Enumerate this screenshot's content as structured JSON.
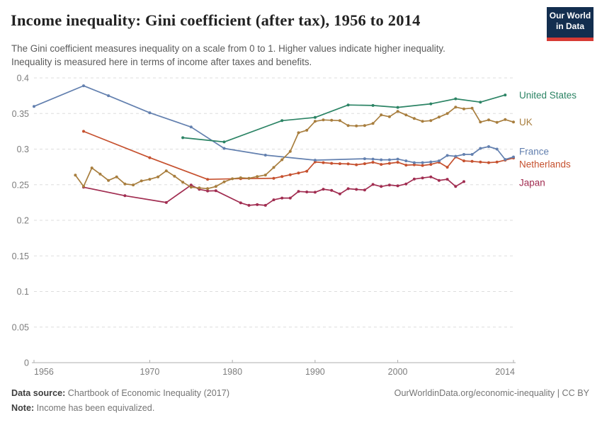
{
  "header": {
    "title": "Income inequality: Gini coefficient (after tax), 1956 to 2014",
    "subtitle_line1": "The Gini coefficient measures inequality on a scale from 0 to 1. Higher values indicate higher inequality.",
    "subtitle_line2": "Inequality is measured here in terms of income after taxes and benefits.",
    "logo_line1": "Our World",
    "logo_line2": "in Data",
    "logo_bg": "#132e4f",
    "logo_accent": "#d73a34"
  },
  "footer": {
    "datasource_label": "Data source:",
    "datasource_value": " Chartbook of Economic Inequality (2017)",
    "note_label": "Note:",
    "note_value": " Income has been equivalized.",
    "link": "OurWorldinData.org/economic-inequality | CC BY"
  },
  "chart_data": {
    "type": "line",
    "title": "Income inequality: Gini coefficient (after tax), 1956 to 2014",
    "xlabel": "",
    "ylabel": "",
    "xlim": [
      1956,
      2014
    ],
    "ylim": [
      0,
      0.4
    ],
    "grid": "horizontal-dashed",
    "legend_position": "end-of-line-labels",
    "axis_color": "#adadad",
    "grid_color": "#dddddd",
    "tick_text_color": "#7d7d7d",
    "x_ticks": [
      {
        "v": 1956,
        "label": "1956",
        "anchor": "start"
      },
      {
        "v": 1970,
        "label": "1970",
        "anchor": "middle"
      },
      {
        "v": 1980,
        "label": "1980",
        "anchor": "middle"
      },
      {
        "v": 1990,
        "label": "1990",
        "anchor": "middle"
      },
      {
        "v": 2000,
        "label": "2000",
        "anchor": "middle"
      },
      {
        "v": 2014,
        "label": "2014",
        "anchor": "end"
      }
    ],
    "y_ticks": [
      {
        "v": 0,
        "label": "0"
      },
      {
        "v": 0.05,
        "label": "0.05"
      },
      {
        "v": 0.1,
        "label": "0.1"
      },
      {
        "v": 0.15,
        "label": "0.15"
      },
      {
        "v": 0.2,
        "label": "0.2"
      },
      {
        "v": 0.25,
        "label": "0.25"
      },
      {
        "v": 0.3,
        "label": "0.3"
      },
      {
        "v": 0.35,
        "label": "0.35"
      },
      {
        "v": 0.4,
        "label": "0.4"
      }
    ],
    "series": [
      {
        "name": "United States",
        "color": "#2c8465",
        "label_value": 0.3755,
        "points": [
          [
            1974,
            0.316
          ],
          [
            1979,
            0.31
          ],
          [
            1986,
            0.34
          ],
          [
            1990,
            0.3445
          ],
          [
            1994,
            0.362
          ],
          [
            1997,
            0.3613
          ],
          [
            2000,
            0.3586
          ],
          [
            2004,
            0.3636
          ],
          [
            2007,
            0.3706
          ],
          [
            2010,
            0.366
          ],
          [
            2013,
            0.376
          ]
        ]
      },
      {
        "name": "UK",
        "color": "#a87e3e",
        "label_value": 0.338,
        "points": [
          [
            1961,
            0.2635
          ],
          [
            1962,
            0.2477
          ],
          [
            1963,
            0.2735
          ],
          [
            1964,
            0.265
          ],
          [
            1965,
            0.256
          ],
          [
            1966,
            0.261
          ],
          [
            1967,
            0.251
          ],
          [
            1968,
            0.2497
          ],
          [
            1969,
            0.2553
          ],
          [
            1970,
            0.2576
          ],
          [
            1971,
            0.261
          ],
          [
            1972,
            0.2695
          ],
          [
            1973,
            0.262
          ],
          [
            1974,
            0.2535
          ],
          [
            1975,
            0.2465
          ],
          [
            1976,
            0.2455
          ],
          [
            1977,
            0.2445
          ],
          [
            1978,
            0.2475
          ],
          [
            1979,
            0.254
          ],
          [
            1980,
            0.2583
          ],
          [
            1981,
            0.2597
          ],
          [
            1982,
            0.259
          ],
          [
            1983,
            0.2615
          ],
          [
            1984,
            0.2636
          ],
          [
            1985,
            0.2742
          ],
          [
            1986,
            0.2851
          ],
          [
            1987,
            0.2967
          ],
          [
            1988,
            0.323
          ],
          [
            1989,
            0.3265
          ],
          [
            1990,
            0.339
          ],
          [
            1991,
            0.341
          ],
          [
            1992,
            0.3405
          ],
          [
            1993,
            0.34
          ],
          [
            1994,
            0.333
          ],
          [
            1995,
            0.3325
          ],
          [
            1996,
            0.333
          ],
          [
            1997,
            0.336
          ],
          [
            1998,
            0.348
          ],
          [
            1999,
            0.3455
          ],
          [
            2000,
            0.353
          ],
          [
            2001,
            0.348
          ],
          [
            2002,
            0.343
          ],
          [
            2003,
            0.339
          ],
          [
            2004,
            0.34
          ],
          [
            2005,
            0.345
          ],
          [
            2006,
            0.35
          ],
          [
            2007,
            0.359
          ],
          [
            2008,
            0.3565
          ],
          [
            2009,
            0.3575
          ],
          [
            2010,
            0.338
          ],
          [
            2011,
            0.341
          ],
          [
            2012,
            0.3375
          ],
          [
            2013,
            0.3415
          ],
          [
            2014,
            0.338
          ]
        ]
      },
      {
        "name": "France",
        "color": "#6380af",
        "label_value": 0.2965,
        "points": [
          [
            1956,
            0.36
          ],
          [
            1962,
            0.389
          ],
          [
            1965,
            0.375
          ],
          [
            1970,
            0.351
          ],
          [
            1975,
            0.331
          ],
          [
            1979,
            0.301
          ],
          [
            1984,
            0.2915
          ],
          [
            1990,
            0.2845
          ],
          [
            1996,
            0.2865
          ],
          [
            1997,
            0.286
          ],
          [
            1998,
            0.285
          ],
          [
            1999,
            0.285
          ],
          [
            2000,
            0.286
          ],
          [
            2001,
            0.2835
          ],
          [
            2002,
            0.281
          ],
          [
            2003,
            0.281
          ],
          [
            2004,
            0.282
          ],
          [
            2005,
            0.2835
          ],
          [
            2006,
            0.291
          ],
          [
            2007,
            0.29
          ],
          [
            2008,
            0.2925
          ],
          [
            2009,
            0.2925
          ],
          [
            2010,
            0.301
          ],
          [
            2011,
            0.3035
          ],
          [
            2012,
            0.3
          ],
          [
            2013,
            0.2855
          ],
          [
            2014,
            0.289
          ]
        ]
      },
      {
        "name": "Netherlands",
        "color": "#c6512f",
        "label_value": 0.2785,
        "points": [
          [
            1962,
            0.325
          ],
          [
            1970,
            0.288
          ],
          [
            1977,
            0.2575
          ],
          [
            1981,
            0.2585
          ],
          [
            1985,
            0.259
          ],
          [
            1986,
            0.2615
          ],
          [
            1987,
            0.264
          ],
          [
            1988,
            0.2665
          ],
          [
            1989,
            0.269
          ],
          [
            1990,
            0.282
          ],
          [
            1991,
            0.281
          ],
          [
            1992,
            0.28
          ],
          [
            1993,
            0.2795
          ],
          [
            1994,
            0.2792
          ],
          [
            1995,
            0.278
          ],
          [
            1996,
            0.2795
          ],
          [
            1997,
            0.2815
          ],
          [
            1998,
            0.2785
          ],
          [
            1999,
            0.28
          ],
          [
            2000,
            0.2815
          ],
          [
            2001,
            0.2775
          ],
          [
            2002,
            0.278
          ],
          [
            2003,
            0.277
          ],
          [
            2004,
            0.2785
          ],
          [
            2005,
            0.2815
          ],
          [
            2006,
            0.2745
          ],
          [
            2007,
            0.289
          ],
          [
            2008,
            0.2835
          ],
          [
            2009,
            0.2828
          ],
          [
            2010,
            0.2818
          ],
          [
            2011,
            0.281
          ],
          [
            2012,
            0.2818
          ],
          [
            2013,
            0.2845
          ],
          [
            2014,
            0.2875
          ]
        ]
      },
      {
        "name": "Japan",
        "color": "#a12d51",
        "label_value": 0.2525,
        "points": [
          [
            1962,
            0.2465
          ],
          [
            1967,
            0.2345
          ],
          [
            1972,
            0.225
          ],
          [
            1975,
            0.2495
          ],
          [
            1976,
            0.2435
          ],
          [
            1977,
            0.2412
          ],
          [
            1978,
            0.2415
          ],
          [
            1981,
            0.2245
          ],
          [
            1982,
            0.221
          ],
          [
            1983,
            0.222
          ],
          [
            1984,
            0.221
          ],
          [
            1985,
            0.2288
          ],
          [
            1986,
            0.2312
          ],
          [
            1987,
            0.2312
          ],
          [
            1988,
            0.2405
          ],
          [
            1989,
            0.2398
          ],
          [
            1990,
            0.2394
          ],
          [
            1991,
            0.2437
          ],
          [
            1992,
            0.242
          ],
          [
            1993,
            0.237
          ],
          [
            1994,
            0.2444
          ],
          [
            1995,
            0.2434
          ],
          [
            1996,
            0.2426
          ],
          [
            1997,
            0.2503
          ],
          [
            1998,
            0.2475
          ],
          [
            1999,
            0.2496
          ],
          [
            2000,
            0.2484
          ],
          [
            2001,
            0.251
          ],
          [
            2002,
            0.2579
          ],
          [
            2003,
            0.2595
          ],
          [
            2004,
            0.261
          ],
          [
            2005,
            0.256
          ],
          [
            2006,
            0.2576
          ],
          [
            2007,
            0.2476
          ],
          [
            2008,
            0.2543
          ]
        ]
      }
    ]
  }
}
